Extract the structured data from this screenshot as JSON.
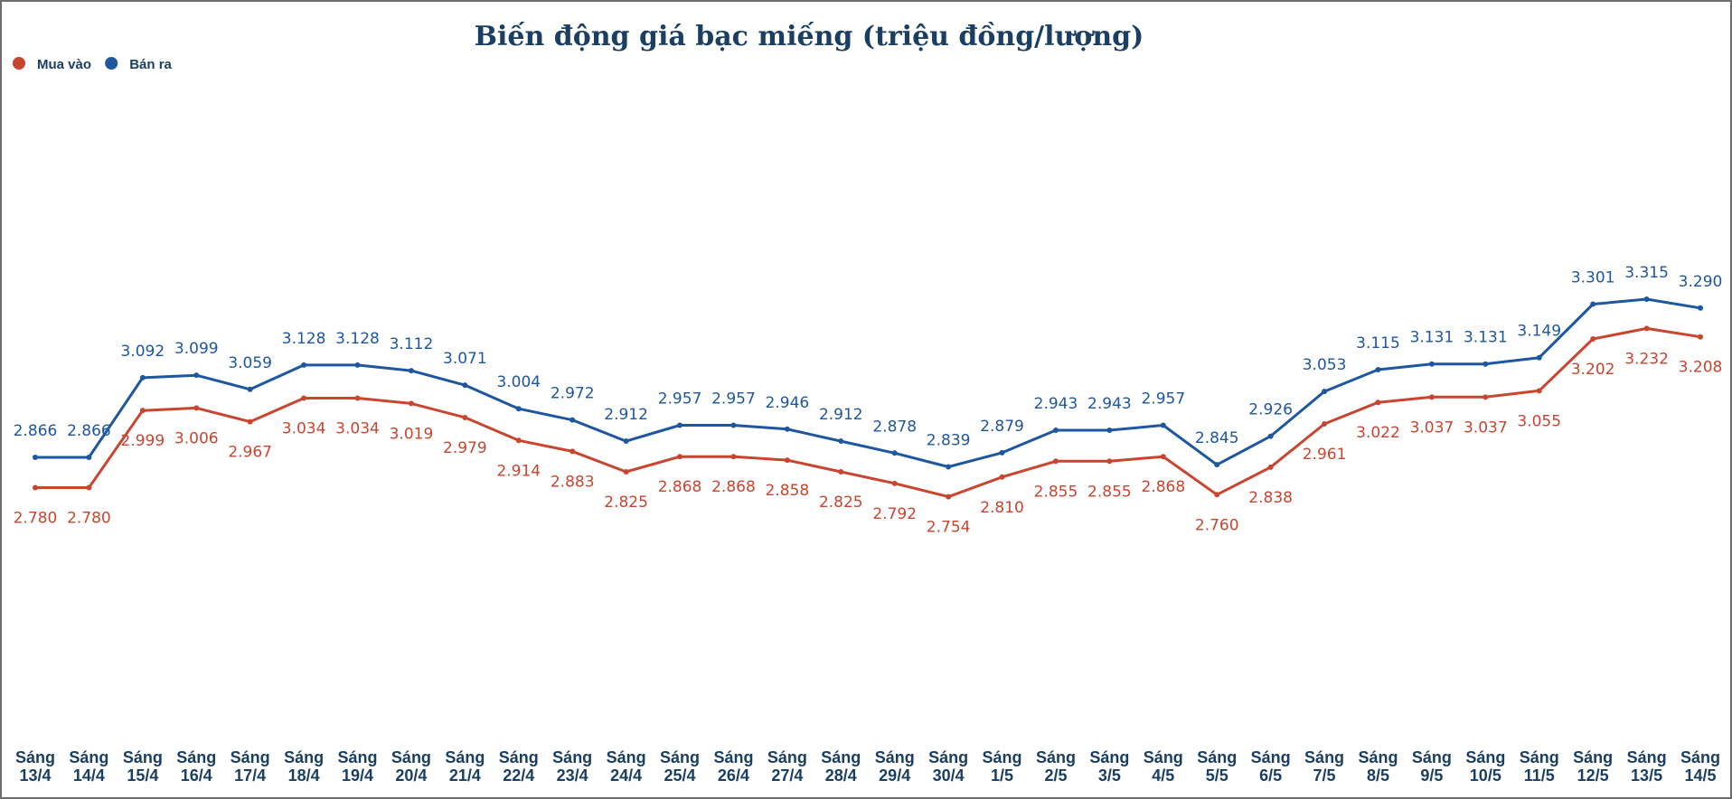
{
  "chart_data": {
    "type": "line",
    "title": "Biến động giá bạc miếng (triệu đồng/lượng)",
    "xlabel": "",
    "ylabel": "",
    "legend_position": "top-left",
    "grid": false,
    "categories": [
      [
        "Sáng",
        "13/4"
      ],
      [
        "Sáng",
        "14/4"
      ],
      [
        "Sáng",
        "15/4"
      ],
      [
        "Sáng",
        "16/4"
      ],
      [
        "Sáng",
        "17/4"
      ],
      [
        "Sáng",
        "18/4"
      ],
      [
        "Sáng",
        "19/4"
      ],
      [
        "Sáng",
        "20/4"
      ],
      [
        "Sáng",
        "21/4"
      ],
      [
        "Sáng",
        "22/4"
      ],
      [
        "Sáng",
        "23/4"
      ],
      [
        "Sáng",
        "24/4"
      ],
      [
        "Sáng",
        "25/4"
      ],
      [
        "Sáng",
        "26/4"
      ],
      [
        "Sáng",
        "27/4"
      ],
      [
        "Sáng",
        "28/4"
      ],
      [
        "Sáng",
        "29/4"
      ],
      [
        "Sáng",
        "30/4"
      ],
      [
        "Sáng",
        "1/5"
      ],
      [
        "Sáng",
        "2/5"
      ],
      [
        "Sáng",
        "3/5"
      ],
      [
        "Sáng",
        "4/5"
      ],
      [
        "Sáng",
        "5/5"
      ],
      [
        "Sáng",
        "6/5"
      ],
      [
        "Sáng",
        "7/5"
      ],
      [
        "Sáng",
        "8/5"
      ],
      [
        "Sáng",
        "9/5"
      ],
      [
        "Sáng",
        "10/5"
      ],
      [
        "Sáng",
        "11/5"
      ],
      [
        "Sáng",
        "12/5"
      ],
      [
        "Sáng",
        "13/5"
      ],
      [
        "Sáng",
        "14/5"
      ]
    ],
    "series": [
      {
        "name": "Mua vào",
        "color": "#c8452f",
        "label_position": "below",
        "values": [
          2.78,
          2.78,
          2.999,
          3.006,
          2.967,
          3.034,
          3.034,
          3.019,
          2.979,
          2.914,
          2.883,
          2.825,
          2.868,
          2.868,
          2.858,
          2.825,
          2.792,
          2.754,
          2.81,
          2.855,
          2.855,
          2.868,
          2.76,
          2.838,
          2.961,
          3.022,
          3.037,
          3.037,
          3.055,
          3.202,
          3.232,
          3.208
        ],
        "labels": [
          "2.780",
          "2.780",
          "2.999",
          "3.006",
          "2.967",
          "3.034",
          "3.034",
          "3.019",
          "2.979",
          "2.914",
          "2.883",
          "2.825",
          "2.868",
          "2.868",
          "2.858",
          "2.825",
          "2.792",
          "2.754",
          "2.810",
          "2.855",
          "2.855",
          "2.868",
          "2.760",
          "2.838",
          "2.961",
          "3.022",
          "3.037",
          "3.037",
          "3.055",
          "3.202",
          "3.232",
          "3.208"
        ]
      },
      {
        "name": "Bán ra",
        "color": "#1e56a0",
        "label_position": "above",
        "values": [
          2.866,
          2.866,
          3.092,
          3.099,
          3.059,
          3.128,
          3.128,
          3.112,
          3.071,
          3.004,
          2.972,
          2.912,
          2.957,
          2.957,
          2.946,
          2.912,
          2.878,
          2.839,
          2.879,
          2.943,
          2.943,
          2.957,
          2.845,
          2.926,
          3.053,
          3.115,
          3.131,
          3.131,
          3.149,
          3.301,
          3.315,
          3.29
        ],
        "labels": [
          "2.866",
          "2.866",
          "3.092",
          "3.099",
          "3.059",
          "3.128",
          "3.128",
          "3.112",
          "3.071",
          "3.004",
          "2.972",
          "2.912",
          "2.957",
          "2.957",
          "2.946",
          "2.912",
          "2.878",
          "2.839",
          "2.879",
          "2.943",
          "2.943",
          "2.957",
          "2.845",
          "2.926",
          "3.053",
          "3.115",
          "3.131",
          "3.131",
          "3.149",
          "3.301",
          "3.315",
          "3.290"
        ]
      }
    ]
  }
}
